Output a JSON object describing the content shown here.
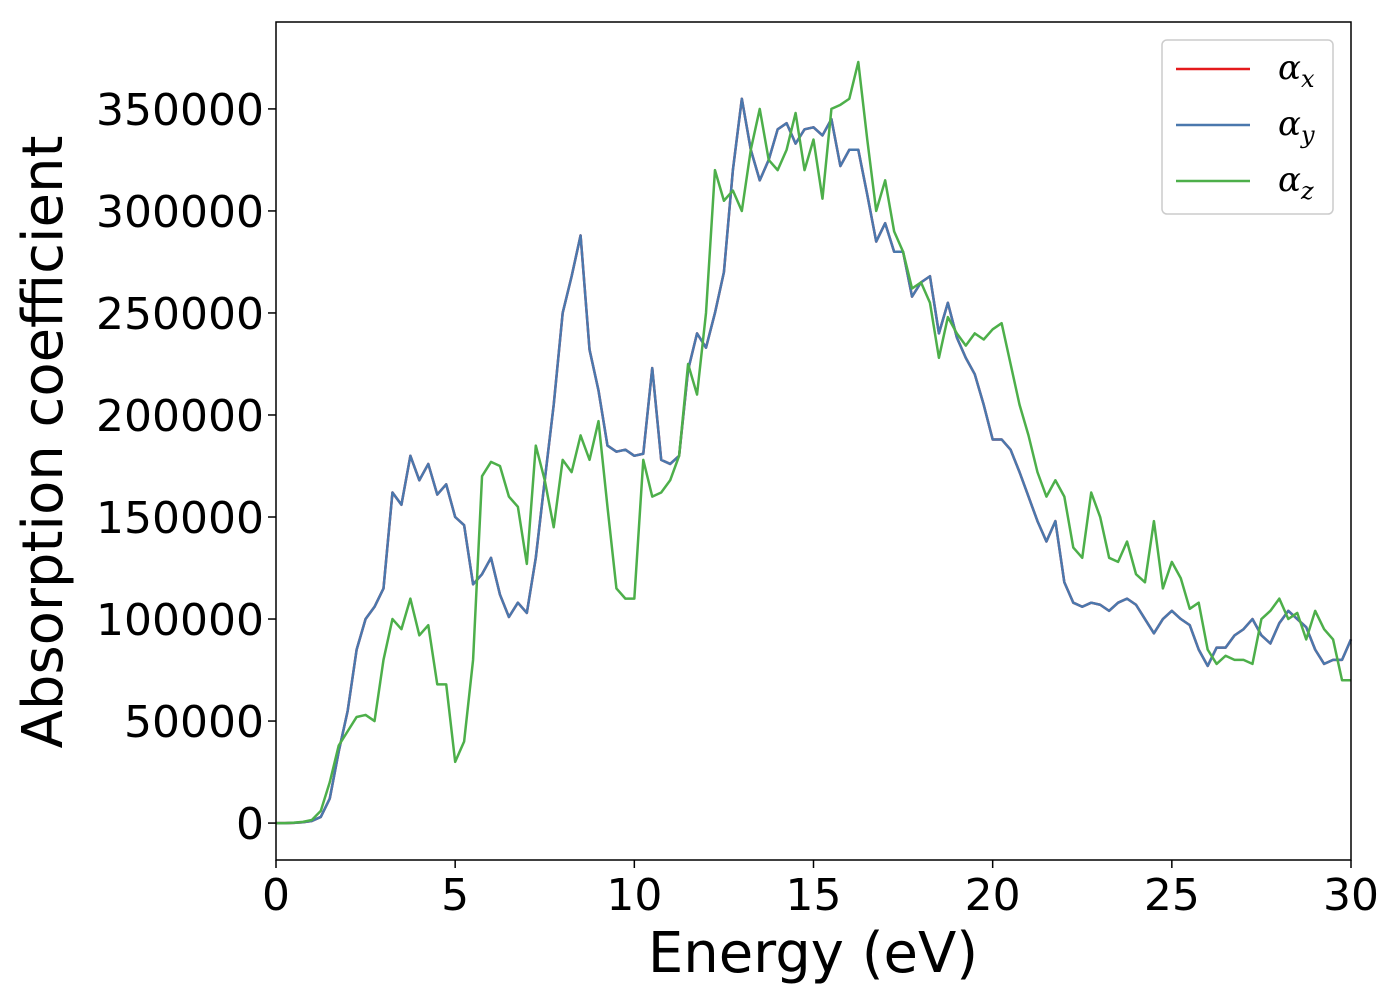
{
  "chart_data": {
    "type": "line",
    "xlabel": "Energy (eV)",
    "ylabel": "Absorption coefficient",
    "x": [
      0,
      0.25,
      0.5,
      0.75,
      1,
      1.25,
      1.5,
      1.75,
      2,
      2.25,
      2.5,
      2.75,
      3,
      3.25,
      3.5,
      3.75,
      4,
      4.25,
      4.5,
      4.75,
      5,
      5.25,
      5.5,
      5.75,
      6,
      6.25,
      6.5,
      6.75,
      7,
      7.25,
      7.5,
      7.75,
      8,
      8.25,
      8.5,
      8.75,
      9,
      9.25,
      9.5,
      9.75,
      10,
      10.25,
      10.5,
      10.75,
      11,
      11.25,
      11.5,
      11.75,
      12,
      12.25,
      12.5,
      12.75,
      13,
      13.25,
      13.5,
      13.75,
      14,
      14.25,
      14.5,
      14.75,
      15,
      15.25,
      15.5,
      15.75,
      16,
      16.25,
      16.5,
      16.75,
      17,
      17.25,
      17.5,
      17.75,
      18,
      18.25,
      18.5,
      18.75,
      19,
      19.25,
      19.5,
      19.75,
      20,
      20.25,
      20.5,
      20.75,
      21,
      21.25,
      21.5,
      21.75,
      22,
      22.25,
      22.5,
      22.75,
      23,
      23.25,
      23.5,
      23.75,
      24,
      24.25,
      24.5,
      24.75,
      25,
      25.25,
      25.5,
      25.75,
      26,
      26.25,
      26.5,
      26.75,
      27,
      27.25,
      27.5,
      27.75,
      28,
      28.25,
      28.5,
      28.75,
      29,
      29.25,
      29.5,
      29.75,
      30
    ],
    "series": [
      {
        "name": "αx",
        "color": "#e41a1c",
        "values": [
          0,
          0,
          100,
          400,
          1000,
          3000,
          12000,
          35000,
          55000,
          85000,
          100000,
          106000,
          115000,
          162000,
          156000,
          180000,
          168000,
          176000,
          161000,
          166000,
          150000,
          146000,
          117000,
          122000,
          130000,
          112000,
          101000,
          108000,
          103000,
          130000,
          168000,
          205000,
          250000,
          268000,
          288000,
          232000,
          212000,
          185000,
          182000,
          183000,
          180000,
          181000,
          223000,
          178000,
          176000,
          180000,
          222000,
          240000,
          233000,
          250000,
          270000,
          320000,
          355000,
          330000,
          315000,
          325000,
          340000,
          343000,
          333000,
          340000,
          341000,
          337000,
          345000,
          322000,
          330000,
          330000,
          308000,
          285000,
          294000,
          280000,
          280000,
          258000,
          265000,
          268000,
          240000,
          255000,
          238000,
          228000,
          220000,
          205000,
          188000,
          188000,
          183000,
          172000,
          160000,
          148000,
          138000,
          148000,
          118000,
          108000,
          106000,
          108000,
          107000,
          104000,
          108000,
          110000,
          107000,
          100000,
          93000,
          100000,
          104000,
          100000,
          97000,
          85000,
          77000,
          86000,
          86000,
          92000,
          95000,
          100000,
          92000,
          88000,
          98000,
          104000,
          100000,
          96000,
          85000,
          78000,
          80000,
          80000,
          90000
        ]
      },
      {
        "name": "αy",
        "color": "#4a78ad",
        "values": [
          0,
          0,
          100,
          400,
          1000,
          3000,
          12000,
          35000,
          55000,
          85000,
          100000,
          106000,
          115000,
          162000,
          156000,
          180000,
          168000,
          176000,
          161000,
          166000,
          150000,
          146000,
          117000,
          122000,
          130000,
          112000,
          101000,
          108000,
          103000,
          130000,
          168000,
          205000,
          250000,
          268000,
          288000,
          232000,
          212000,
          185000,
          182000,
          183000,
          180000,
          181000,
          223000,
          178000,
          176000,
          180000,
          222000,
          240000,
          233000,
          250000,
          270000,
          320000,
          355000,
          330000,
          315000,
          325000,
          340000,
          343000,
          333000,
          340000,
          341000,
          337000,
          345000,
          322000,
          330000,
          330000,
          308000,
          285000,
          294000,
          280000,
          280000,
          258000,
          265000,
          268000,
          240000,
          255000,
          238000,
          228000,
          220000,
          205000,
          188000,
          188000,
          183000,
          172000,
          160000,
          148000,
          138000,
          148000,
          118000,
          108000,
          106000,
          108000,
          107000,
          104000,
          108000,
          110000,
          107000,
          100000,
          93000,
          100000,
          104000,
          100000,
          97000,
          85000,
          77000,
          86000,
          86000,
          92000,
          95000,
          100000,
          92000,
          88000,
          98000,
          104000,
          100000,
          96000,
          85000,
          78000,
          80000,
          80000,
          90000
        ]
      },
      {
        "name": "αz",
        "color": "#4daf4a",
        "values": [
          0,
          0,
          200,
          600,
          1500,
          6000,
          20000,
          38000,
          45000,
          52000,
          53000,
          50000,
          80000,
          100000,
          95000,
          110000,
          92000,
          97000,
          68000,
          68000,
          30000,
          40000,
          80000,
          170000,
          177000,
          175000,
          160000,
          155000,
          127000,
          185000,
          168000,
          145000,
          178000,
          172000,
          190000,
          178000,
          197000,
          155000,
          115000,
          110000,
          110000,
          178000,
          160000,
          162000,
          168000,
          180000,
          225000,
          210000,
          250000,
          320000,
          305000,
          310000,
          300000,
          330000,
          350000,
          325000,
          320000,
          330000,
          348000,
          320000,
          335000,
          306000,
          350000,
          352000,
          355000,
          373000,
          335000,
          300000,
          315000,
          290000,
          280000,
          262000,
          265000,
          255000,
          228000,
          248000,
          240000,
          234000,
          240000,
          237000,
          242000,
          245000,
          225000,
          205000,
          190000,
          172000,
          160000,
          168000,
          160000,
          135000,
          130000,
          162000,
          150000,
          130000,
          128000,
          138000,
          122000,
          118000,
          148000,
          115000,
          128000,
          120000,
          105000,
          108000,
          85000,
          78000,
          82000,
          80000,
          80000,
          78000,
          100000,
          104000,
          110000,
          100000,
          103000,
          90000,
          104000,
          95000,
          90000,
          70000,
          70000
        ]
      }
    ],
    "xlim": [
      0,
      30
    ],
    "xticks": [
      0,
      5,
      10,
      15,
      20,
      25,
      30
    ],
    "ylim": [
      -18100,
      392600
    ],
    "yticks": [
      0,
      50000,
      100000,
      150000,
      200000,
      250000,
      300000,
      350000
    ],
    "legend": "upper right"
  }
}
